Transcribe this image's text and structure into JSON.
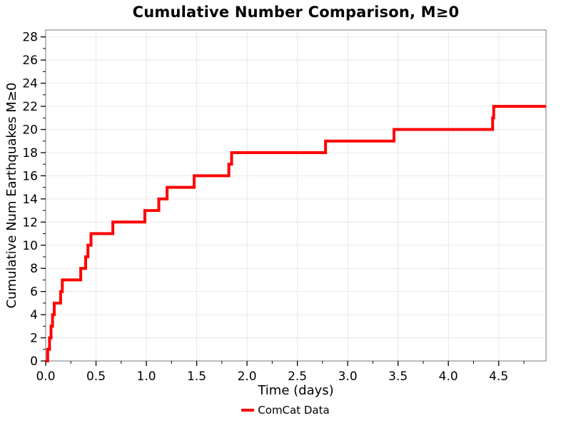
{
  "chart_data": {
    "type": "line",
    "step_mode": "post",
    "title": "Cumulative Number Comparison, M≥0",
    "xlabel": "Time (days)",
    "ylabel": "Cumulative Num Earthquakes M≥0",
    "xlim": [
      0,
      4.97
    ],
    "ylim": [
      0,
      28.6
    ],
    "xticks": [
      0,
      0.5,
      1,
      1.5,
      2,
      2.5,
      3,
      3.5,
      4,
      4.5
    ],
    "xtick_labels": [
      "0.0",
      "0.5",
      "1.0",
      "1.5",
      "2.0",
      "2.5",
      "3.0",
      "3.5",
      "4.0",
      "4.5"
    ],
    "yticks": [
      0,
      2,
      4,
      6,
      8,
      10,
      12,
      14,
      16,
      18,
      20,
      22,
      24,
      26,
      28
    ],
    "ytick_labels": [
      "0",
      "2",
      "4",
      "6",
      "8",
      "10",
      "12",
      "14",
      "16",
      "18",
      "20",
      "22",
      "24",
      "26",
      "28"
    ],
    "minor_xtick_step": 0.25,
    "minor_ytick_step": 1,
    "grid": true,
    "legend_position": "bottom-center",
    "colors": {
      "line": "#ff0000",
      "grid": "#e7e7e7",
      "spine": "#909090",
      "tick": "#000000",
      "background": "#ffffff"
    },
    "series": [
      {
        "name": "ComCat Data",
        "color": "#ff0000",
        "line_width": 4,
        "start": {
          "x": 0,
          "y": 0
        },
        "end_x": 4.97,
        "x": [
          0.02,
          0.038,
          0.053,
          0.068,
          0.085,
          0.148,
          0.165,
          0.348,
          0.397,
          0.42,
          0.45,
          0.667,
          0.985,
          1.124,
          1.206,
          1.475,
          1.819,
          1.847,
          2.78,
          3.46,
          4.44,
          4.45
        ],
        "y": [
          1,
          2,
          3,
          4,
          5,
          6,
          7,
          8,
          9,
          10,
          11,
          12,
          13,
          14,
          15,
          16,
          17,
          18,
          19,
          20,
          21,
          22
        ]
      }
    ]
  }
}
